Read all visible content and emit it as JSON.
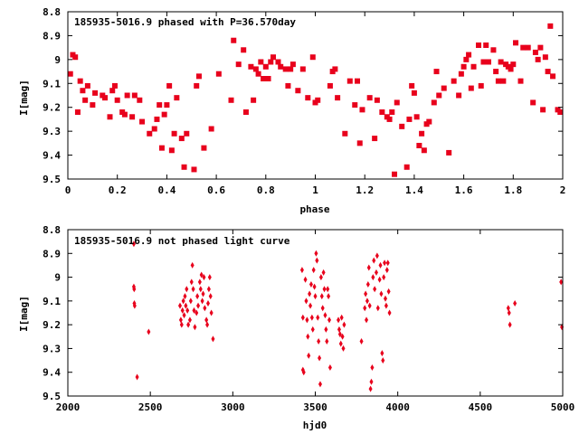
{
  "colors": {
    "marker": "#e8001c",
    "axis": "#000000",
    "background": "#ffffff"
  },
  "chart_data": [
    {
      "type": "scatter",
      "title": "185935-5016.9 phased with P=36.570day",
      "xlabel": "phase",
      "ylabel": "I[mag]",
      "xlim": [
        0,
        2
      ],
      "ylim": [
        8.8,
        9.5
      ],
      "y_inverted": true,
      "grid": false,
      "marker": "square",
      "xticks": [
        0,
        0.2,
        0.4,
        0.6,
        0.8,
        1,
        1.2,
        1.4,
        1.6,
        1.8,
        2
      ],
      "xtick_labels": [
        "0",
        "0.2",
        "0.4",
        "0.6",
        "0.8",
        "1",
        "1.2",
        "1.4",
        "1.6",
        "1.8",
        "2"
      ],
      "yticks": [
        8.8,
        8.9,
        9.0,
        9.1,
        9.2,
        9.3,
        9.4,
        9.5
      ],
      "ytick_labels": [
        "8.8",
        "8.9",
        "9",
        "9.1",
        "9.2",
        "9.3",
        "9.4",
        "9.5"
      ],
      "points": [
        [
          0.01,
          9.06
        ],
        [
          0.02,
          8.98
        ],
        [
          0.03,
          8.99
        ],
        [
          0.04,
          9.22
        ],
        [
          0.05,
          9.09
        ],
        [
          0.06,
          9.13
        ],
        [
          0.07,
          9.17
        ],
        [
          0.08,
          9.11
        ],
        [
          0.1,
          9.19
        ],
        [
          0.11,
          9.14
        ],
        [
          0.14,
          9.15
        ],
        [
          0.15,
          9.16
        ],
        [
          0.17,
          9.24
        ],
        [
          0.18,
          9.13
        ],
        [
          0.19,
          9.11
        ],
        [
          0.2,
          9.17
        ],
        [
          0.22,
          9.22
        ],
        [
          0.23,
          9.23
        ],
        [
          0.24,
          9.15
        ],
        [
          0.26,
          9.24
        ],
        [
          0.27,
          9.15
        ],
        [
          0.29,
          9.17
        ],
        [
          0.3,
          9.26
        ],
        [
          0.33,
          9.31
        ],
        [
          0.35,
          9.29
        ],
        [
          0.36,
          9.25
        ],
        [
          0.37,
          9.19
        ],
        [
          0.38,
          9.37
        ],
        [
          0.39,
          9.23
        ],
        [
          0.4,
          9.19
        ],
        [
          0.41,
          9.11
        ],
        [
          0.42,
          9.38
        ],
        [
          0.43,
          9.31
        ],
        [
          0.44,
          9.16
        ],
        [
          0.46,
          9.33
        ],
        [
          0.47,
          9.45
        ],
        [
          0.48,
          9.31
        ],
        [
          0.51,
          9.46
        ],
        [
          0.52,
          9.11
        ],
        [
          0.53,
          9.07
        ],
        [
          0.55,
          9.37
        ],
        [
          0.58,
          9.29
        ],
        [
          0.61,
          9.06
        ],
        [
          0.66,
          9.17
        ],
        [
          0.67,
          8.92
        ],
        [
          0.69,
          9.02
        ],
        [
          0.71,
          8.96
        ],
        [
          0.72,
          9.22
        ],
        [
          0.74,
          9.03
        ],
        [
          0.75,
          9.17
        ],
        [
          0.76,
          9.04
        ],
        [
          0.77,
          9.06
        ],
        [
          0.78,
          9.01
        ],
        [
          0.79,
          9.08
        ],
        [
          0.8,
          9.03
        ],
        [
          0.81,
          9.08
        ],
        [
          0.82,
          9.01
        ],
        [
          0.83,
          8.99
        ],
        [
          0.85,
          9.01
        ],
        [
          0.86,
          9.03
        ],
        [
          0.88,
          9.04
        ],
        [
          0.89,
          9.11
        ],
        [
          0.9,
          9.04
        ],
        [
          0.91,
          9.02
        ],
        [
          0.93,
          9.13
        ],
        [
          0.95,
          9.04
        ],
        [
          0.97,
          9.16
        ],
        [
          0.99,
          8.99
        ],
        [
          1.0,
          9.18
        ],
        [
          1.01,
          9.17
        ],
        [
          1.06,
          9.11
        ],
        [
          1.07,
          9.05
        ],
        [
          1.08,
          9.04
        ],
        [
          1.09,
          9.16
        ],
        [
          1.12,
          9.31
        ],
        [
          1.14,
          9.09
        ],
        [
          1.16,
          9.19
        ],
        [
          1.17,
          9.09
        ],
        [
          1.18,
          9.35
        ],
        [
          1.19,
          9.21
        ],
        [
          1.22,
          9.16
        ],
        [
          1.24,
          9.33
        ],
        [
          1.25,
          9.17
        ],
        [
          1.27,
          9.22
        ],
        [
          1.29,
          9.24
        ],
        [
          1.3,
          9.25
        ],
        [
          1.31,
          9.22
        ],
        [
          1.32,
          9.48
        ],
        [
          1.33,
          9.18
        ],
        [
          1.35,
          9.28
        ],
        [
          1.37,
          9.45
        ],
        [
          1.38,
          9.25
        ],
        [
          1.39,
          9.11
        ],
        [
          1.4,
          9.14
        ],
        [
          1.41,
          9.24
        ],
        [
          1.42,
          9.36
        ],
        [
          1.43,
          9.31
        ],
        [
          1.44,
          9.38
        ],
        [
          1.45,
          9.27
        ],
        [
          1.46,
          9.26
        ],
        [
          1.48,
          9.18
        ],
        [
          1.49,
          9.05
        ],
        [
          1.5,
          9.15
        ],
        [
          1.52,
          9.12
        ],
        [
          1.54,
          9.39
        ],
        [
          1.56,
          9.09
        ],
        [
          1.58,
          9.15
        ],
        [
          1.59,
          9.06
        ],
        [
          1.6,
          9.03
        ],
        [
          1.61,
          9.0
        ],
        [
          1.62,
          8.98
        ],
        [
          1.63,
          9.12
        ],
        [
          1.64,
          9.03
        ],
        [
          1.66,
          8.94
        ],
        [
          1.67,
          9.11
        ],
        [
          1.68,
          9.01
        ],
        [
          1.69,
          8.94
        ],
        [
          1.7,
          9.01
        ],
        [
          1.72,
          8.96
        ],
        [
          1.73,
          9.05
        ],
        [
          1.74,
          9.09
        ],
        [
          1.75,
          9.01
        ],
        [
          1.76,
          9.09
        ],
        [
          1.77,
          9.02
        ],
        [
          1.78,
          9.03
        ],
        [
          1.79,
          9.04
        ],
        [
          1.8,
          9.02
        ],
        [
          1.81,
          8.93
        ],
        [
          1.83,
          9.09
        ],
        [
          1.84,
          8.95
        ],
        [
          1.86,
          8.95
        ],
        [
          1.88,
          9.18
        ],
        [
          1.89,
          8.97
        ],
        [
          1.9,
          9.0
        ],
        [
          1.91,
          8.95
        ],
        [
          1.92,
          9.21
        ],
        [
          1.93,
          8.99
        ],
        [
          1.94,
          9.05
        ],
        [
          1.95,
          8.86
        ],
        [
          1.96,
          9.07
        ],
        [
          1.98,
          9.21
        ],
        [
          1.99,
          9.22
        ]
      ]
    },
    {
      "type": "scatter",
      "title": "185935-5016.9 not phased light curve",
      "xlabel": "hjd0",
      "ylabel": "I[mag]",
      "xlim": [
        2000,
        5000
      ],
      "ylim": [
        8.8,
        9.5
      ],
      "y_inverted": true,
      "grid": false,
      "marker": "diamond",
      "xticks": [
        2000,
        2500,
        3000,
        3500,
        4000,
        4500,
        5000
      ],
      "xtick_labels": [
        "2000",
        "2500",
        "3000",
        "3500",
        "4000",
        "4500",
        "5000"
      ],
      "yticks": [
        8.8,
        8.9,
        9.0,
        9.1,
        9.2,
        9.3,
        9.4,
        9.5
      ],
      "ytick_labels": [
        "8.8",
        "8.9",
        "9",
        "9.1",
        "9.2",
        "9.3",
        "9.4",
        "9.5"
      ],
      "points": [
        [
          2400,
          8.86
        ],
        [
          2400,
          9.04
        ],
        [
          2402,
          9.05
        ],
        [
          2403,
          9.11
        ],
        [
          2405,
          9.12
        ],
        [
          2420,
          9.42
        ],
        [
          2490,
          9.23
        ],
        [
          2680,
          9.12
        ],
        [
          2685,
          9.18
        ],
        [
          2690,
          9.2
        ],
        [
          2695,
          9.14
        ],
        [
          2700,
          9.1
        ],
        [
          2705,
          9.16
        ],
        [
          2710,
          9.08
        ],
        [
          2715,
          9.12
        ],
        [
          2720,
          9.05
        ],
        [
          2725,
          9.14
        ],
        [
          2730,
          9.2
        ],
        [
          2740,
          9.18
        ],
        [
          2745,
          9.1
        ],
        [
          2750,
          9.02
        ],
        [
          2755,
          8.95
        ],
        [
          2760,
          9.05
        ],
        [
          2765,
          9.14
        ],
        [
          2770,
          9.21
        ],
        [
          2780,
          9.15
        ],
        [
          2785,
          9.08
        ],
        [
          2790,
          9.12
        ],
        [
          2800,
          9.02
        ],
        [
          2805,
          9.05
        ],
        [
          2810,
          8.99
        ],
        [
          2815,
          9.1
        ],
        [
          2820,
          9.07
        ],
        [
          2825,
          9.0
        ],
        [
          2830,
          9.13
        ],
        [
          2840,
          9.18
        ],
        [
          2845,
          9.2
        ],
        [
          2850,
          9.11
        ],
        [
          2855,
          9.05
        ],
        [
          2860,
          9.0
        ],
        [
          2865,
          9.08
        ],
        [
          2870,
          9.15
        ],
        [
          2880,
          9.26
        ],
        [
          3420,
          8.97
        ],
        [
          3425,
          9.17
        ],
        [
          3425,
          9.39
        ],
        [
          3430,
          9.4
        ],
        [
          3440,
          9.01
        ],
        [
          3445,
          9.1
        ],
        [
          3450,
          9.18
        ],
        [
          3455,
          9.25
        ],
        [
          3460,
          9.33
        ],
        [
          3465,
          9.07
        ],
        [
          3470,
          9.12
        ],
        [
          3475,
          9.03
        ],
        [
          3480,
          9.17
        ],
        [
          3485,
          9.22
        ],
        [
          3490,
          8.97
        ],
        [
          3495,
          9.04
        ],
        [
          3500,
          9.08
        ],
        [
          3505,
          8.9
        ],
        [
          3510,
          8.93
        ],
        [
          3515,
          9.17
        ],
        [
          3520,
          9.27
        ],
        [
          3525,
          9.34
        ],
        [
          3530,
          9.45
        ],
        [
          3535,
          9.0
        ],
        [
          3540,
          9.08
        ],
        [
          3545,
          9.13
        ],
        [
          3550,
          8.98
        ],
        [
          3555,
          9.05
        ],
        [
          3560,
          9.16
        ],
        [
          3565,
          9.22
        ],
        [
          3570,
          9.27
        ],
        [
          3575,
          9.05
        ],
        [
          3580,
          9.08
        ],
        [
          3585,
          9.18
        ],
        [
          3590,
          9.38
        ],
        [
          3640,
          9.18
        ],
        [
          3645,
          9.22
        ],
        [
          3650,
          9.24
        ],
        [
          3655,
          9.28
        ],
        [
          3660,
          9.17
        ],
        [
          3665,
          9.25
        ],
        [
          3670,
          9.3
        ],
        [
          3675,
          9.2
        ],
        [
          3780,
          9.27
        ],
        [
          3800,
          9.13
        ],
        [
          3805,
          9.07
        ],
        [
          3810,
          9.18
        ],
        [
          3815,
          9.1
        ],
        [
          3820,
          9.03
        ],
        [
          3825,
          8.96
        ],
        [
          3830,
          9.12
        ],
        [
          3835,
          9.47
        ],
        [
          3840,
          9.44
        ],
        [
          3845,
          9.38
        ],
        [
          3850,
          9.0
        ],
        [
          3855,
          8.93
        ],
        [
          3860,
          9.05
        ],
        [
          3870,
          8.98
        ],
        [
          3875,
          8.91
        ],
        [
          3880,
          9.13
        ],
        [
          3890,
          9.01
        ],
        [
          3895,
          8.95
        ],
        [
          3900,
          9.07
        ],
        [
          3905,
          9.32
        ],
        [
          3910,
          9.35
        ],
        [
          3915,
          9.0
        ],
        [
          3920,
          8.94
        ],
        [
          3925,
          9.09
        ],
        [
          3930,
          9.12
        ],
        [
          3935,
          8.97
        ],
        [
          3940,
          8.94
        ],
        [
          3945,
          9.06
        ],
        [
          3950,
          9.15
        ],
        [
          4670,
          9.13
        ],
        [
          4675,
          9.15
        ],
        [
          4680,
          9.2
        ],
        [
          4710,
          9.11
        ],
        [
          4990,
          9.02
        ],
        [
          4995,
          9.21
        ]
      ]
    }
  ]
}
